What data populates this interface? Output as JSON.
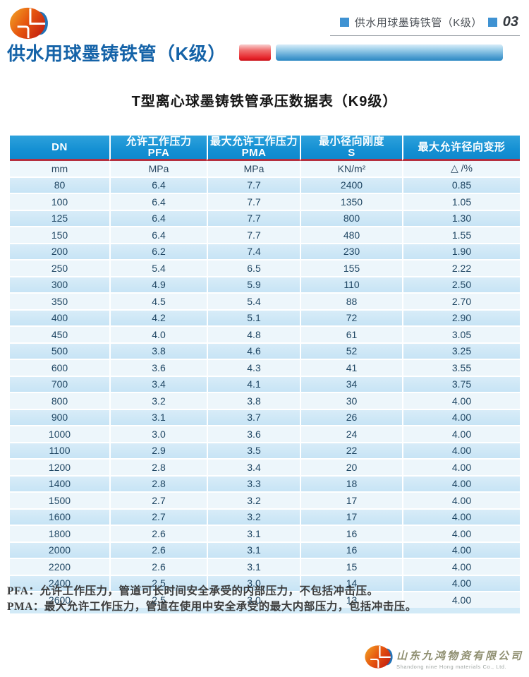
{
  "page_header": {
    "breadcrumb_text": "供水用球墨铸铁管（K级）",
    "page_number": "03"
  },
  "section_title": "供水用球墨铸铁管（K级）",
  "table_title": "T型离心球墨铸铁管承压数据表（K9级）",
  "table": {
    "columns": [
      {
        "title": "DN",
        "subtitle": "",
        "unit": "mm"
      },
      {
        "title": "允许工作压力",
        "subtitle": "PFA",
        "unit": "MPa"
      },
      {
        "title": "最大允许工作压力",
        "subtitle": "PMA",
        "unit": "MPa"
      },
      {
        "title": "最小径向刚度",
        "subtitle": "S",
        "unit": "KN/m²"
      },
      {
        "title": "最大允许径向变形",
        "subtitle": "",
        "unit": "△ /%"
      }
    ],
    "rows": [
      [
        "80",
        "6.4",
        "7.7",
        "2400",
        "0.85"
      ],
      [
        "100",
        "6.4",
        "7.7",
        "1350",
        "1.05"
      ],
      [
        "125",
        "6.4",
        "7.7",
        "800",
        "1.30"
      ],
      [
        "150",
        "6.4",
        "7.7",
        "480",
        "1.55"
      ],
      [
        "200",
        "6.2",
        "7.4",
        "230",
        "1.90"
      ],
      [
        "250",
        "5.4",
        "6.5",
        "155",
        "2.22"
      ],
      [
        "300",
        "4.9",
        "5.9",
        "110",
        "2.50"
      ],
      [
        "350",
        "4.5",
        "5.4",
        "88",
        "2.70"
      ],
      [
        "400",
        "4.2",
        "5.1",
        "72",
        "2.90"
      ],
      [
        "450",
        "4.0",
        "4.8",
        "61",
        "3.05"
      ],
      [
        "500",
        "3.8",
        "4.6",
        "52",
        "3.25"
      ],
      [
        "600",
        "3.6",
        "4.3",
        "41",
        "3.55"
      ],
      [
        "700",
        "3.4",
        "4.1",
        "34",
        "3.75"
      ],
      [
        "800",
        "3.2",
        "3.8",
        "30",
        "4.00"
      ],
      [
        "900",
        "3.1",
        "3.7",
        "26",
        "4.00"
      ],
      [
        "1000",
        "3.0",
        "3.6",
        "24",
        "4.00"
      ],
      [
        "1100",
        "2.9",
        "3.5",
        "22",
        "4.00"
      ],
      [
        "1200",
        "2.8",
        "3.4",
        "20",
        "4.00"
      ],
      [
        "1400",
        "2.8",
        "3.3",
        "18",
        "4.00"
      ],
      [
        "1500",
        "2.7",
        "3.2",
        "17",
        "4.00"
      ],
      [
        "1600",
        "2.7",
        "3.2",
        "17",
        "4.00"
      ],
      [
        "1800",
        "2.6",
        "3.1",
        "16",
        "4.00"
      ],
      [
        "2000",
        "2.6",
        "3.1",
        "16",
        "4.00"
      ],
      [
        "2200",
        "2.6",
        "3.1",
        "15",
        "4.00"
      ],
      [
        "2400",
        "2.5",
        "3.0",
        "14",
        "4.00"
      ],
      [
        "2600",
        "2.5",
        "3.0",
        "13",
        "4.00"
      ]
    ]
  },
  "footnotes": [
    "PFA：允许工作压力，管道可长时间安全承受的内部压力，不包括冲击压。",
    "PMA：最大允许工作压力，管道在使用中安全承受的最大内部压力，包括冲击压。"
  ],
  "footer": {
    "company_cn": "山东九鸿物资有限公司",
    "company_en": "Shandong nine Hong materials Co., Ltd."
  },
  "colors": {
    "header_blue": "#1590d3",
    "row_blue": "#c7e4f5",
    "row_light": "#edf6fb",
    "separator_red": "#b5303f",
    "accent_red": "#e52228",
    "accent_blue_bar": "#2a87c2",
    "title_blue": "#1563a8"
  }
}
